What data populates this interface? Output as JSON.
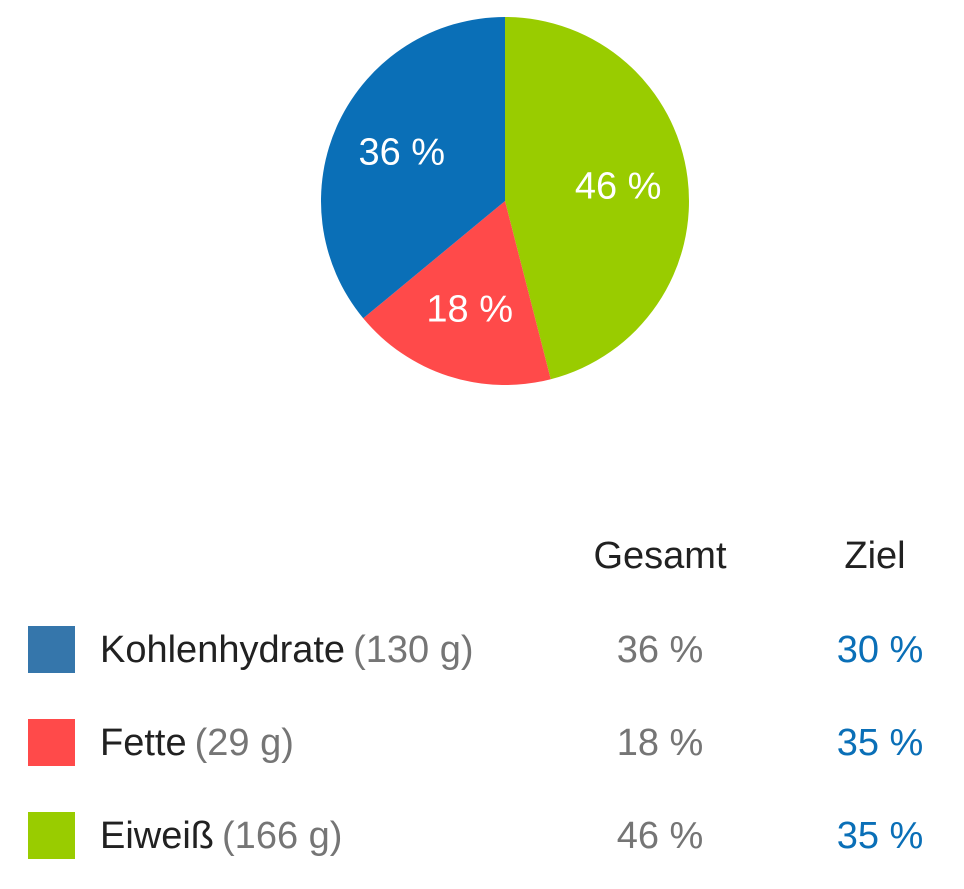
{
  "chart_data": {
    "type": "pie",
    "slices": [
      {
        "name": "Eiweiß",
        "value": 46,
        "label": "46 %",
        "color": "#99cc00"
      },
      {
        "name": "Fette",
        "value": 18,
        "label": "18 %",
        "color": "#ff4a4a"
      },
      {
        "name": "Kohlenhydrate",
        "value": 36,
        "label": "36 %",
        "color": "#0a6fb7"
      }
    ]
  },
  "legend": {
    "header_total": "Gesamt",
    "header_goal": "Ziel",
    "rows": [
      {
        "name": "Kohlenhydrate",
        "amount": "(130 g)",
        "total": "36 %",
        "goal": "30 %",
        "color": "#3576ab"
      },
      {
        "name": "Fette",
        "amount": "(29 g)",
        "total": "18 %",
        "goal": "35 %",
        "color": "#ff4a4a"
      },
      {
        "name": "Eiweiß",
        "amount": "(166 g)",
        "total": "46 %",
        "goal": "35 %",
        "color": "#99cc00"
      }
    ]
  }
}
